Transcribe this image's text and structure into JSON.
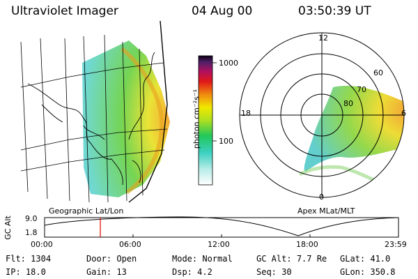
{
  "header": {
    "instrument": "Ultraviolet Imager",
    "date": "04 Aug 00",
    "time": "03:50:39 UT"
  },
  "colorbar": {
    "label": "photon cm⁻²s⁻¹",
    "ticks": [
      "1000",
      "100"
    ]
  },
  "polar": {
    "mlt_labels": {
      "top": "12",
      "left": "18",
      "right": "6",
      "bottom": "0"
    },
    "lat_labels": [
      "60",
      "70",
      "80"
    ]
  },
  "panel_labels": {
    "geographic": "Geographic Lat/Lon",
    "apex": "Apex MLat/MLT"
  },
  "altitude_plot": {
    "axis_label": "GC Alt",
    "y_ticks": [
      "9.0",
      "1.8"
    ],
    "x_ticks": [
      "00:00",
      "06:00",
      "12:00",
      "18:00",
      "23:59"
    ]
  },
  "info": {
    "flt": {
      "label": "Flt:",
      "value": "1304"
    },
    "ip": {
      "label": "IP:",
      "value": "18.0"
    },
    "door": {
      "label": "Door:",
      "value": "Open"
    },
    "gain": {
      "label": "Gain:",
      "value": "13"
    },
    "mode": {
      "label": "Mode:",
      "value": "Normal"
    },
    "dsp": {
      "label": "Dsp:",
      "value": "4.2"
    },
    "gcalt": {
      "label": "GC Alt:",
      "value": "7.7 Re"
    },
    "seq": {
      "label": "Seq:",
      "value": "30"
    },
    "glat": {
      "label": "GLat:",
      "value": "41.0"
    },
    "glon": {
      "label": "GLon:",
      "value": "350.8"
    }
  }
}
